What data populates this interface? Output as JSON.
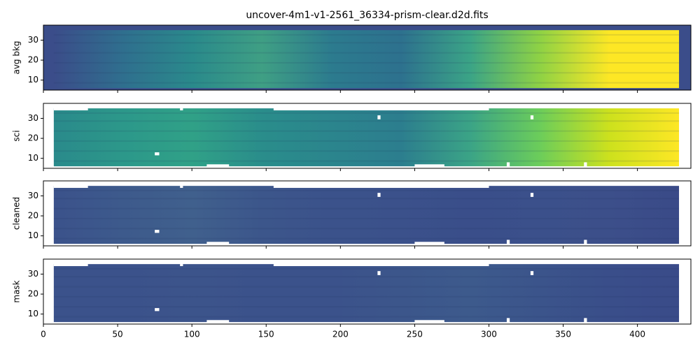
{
  "chart_data": [
    {
      "type": "heatmap",
      "title": "uncover-4m1-v1-2561_36334-prism-clear.d2d.fits",
      "ylabel": "avg bkg",
      "xlim": [
        0,
        436
      ],
      "ylim": [
        5,
        37.5
      ],
      "yticks": [
        10,
        20,
        30
      ],
      "colors": [
        "#3b4d8a",
        "#2f6f8e",
        "#2a8a8b",
        "#3f9f84",
        "#2c7b8e",
        "#2d718e",
        "#3ba486",
        "#8fd244",
        "#fde725",
        "#fde725"
      ]
    },
    {
      "type": "heatmap",
      "ylabel": "sci",
      "xlim": [
        0,
        436
      ],
      "ylim": [
        5,
        37.5
      ],
      "yticks": [
        10,
        20,
        30
      ],
      "colors": [
        "#2a8a8b",
        "#2c988a",
        "#30a187",
        "#2a8d8b",
        "#2b858d",
        "#2c7e8e",
        "#3ba486",
        "#6ccd5a",
        "#cde11d",
        "#fde725"
      ]
    },
    {
      "type": "heatmap",
      "ylabel": "cleaned",
      "xlim": [
        0,
        436
      ],
      "ylim": [
        5,
        37.5
      ],
      "yticks": [
        10,
        20,
        30
      ],
      "colors": [
        "#3b528b",
        "#3d5a8c",
        "#40608d",
        "#3c568b",
        "#3b528b",
        "#3b518b",
        "#3a4e8a",
        "#3b508b",
        "#3c4f8a",
        "#3a4a88"
      ]
    },
    {
      "type": "heatmap",
      "ylabel": "mask",
      "xlim": [
        0,
        436
      ],
      "ylim": [
        5,
        37.5
      ],
      "yticks": [
        10,
        20,
        30
      ],
      "colors": [
        "#3b528b",
        "#3b528b",
        "#3c548b",
        "#3b528b",
        "#3b528b",
        "#3c568b",
        "#3d5a8c",
        "#3b548b",
        "#3a4e8a",
        "#3a4b89"
      ],
      "xticks": [
        0,
        50,
        100,
        150,
        200,
        250,
        300,
        350,
        400
      ]
    }
  ]
}
